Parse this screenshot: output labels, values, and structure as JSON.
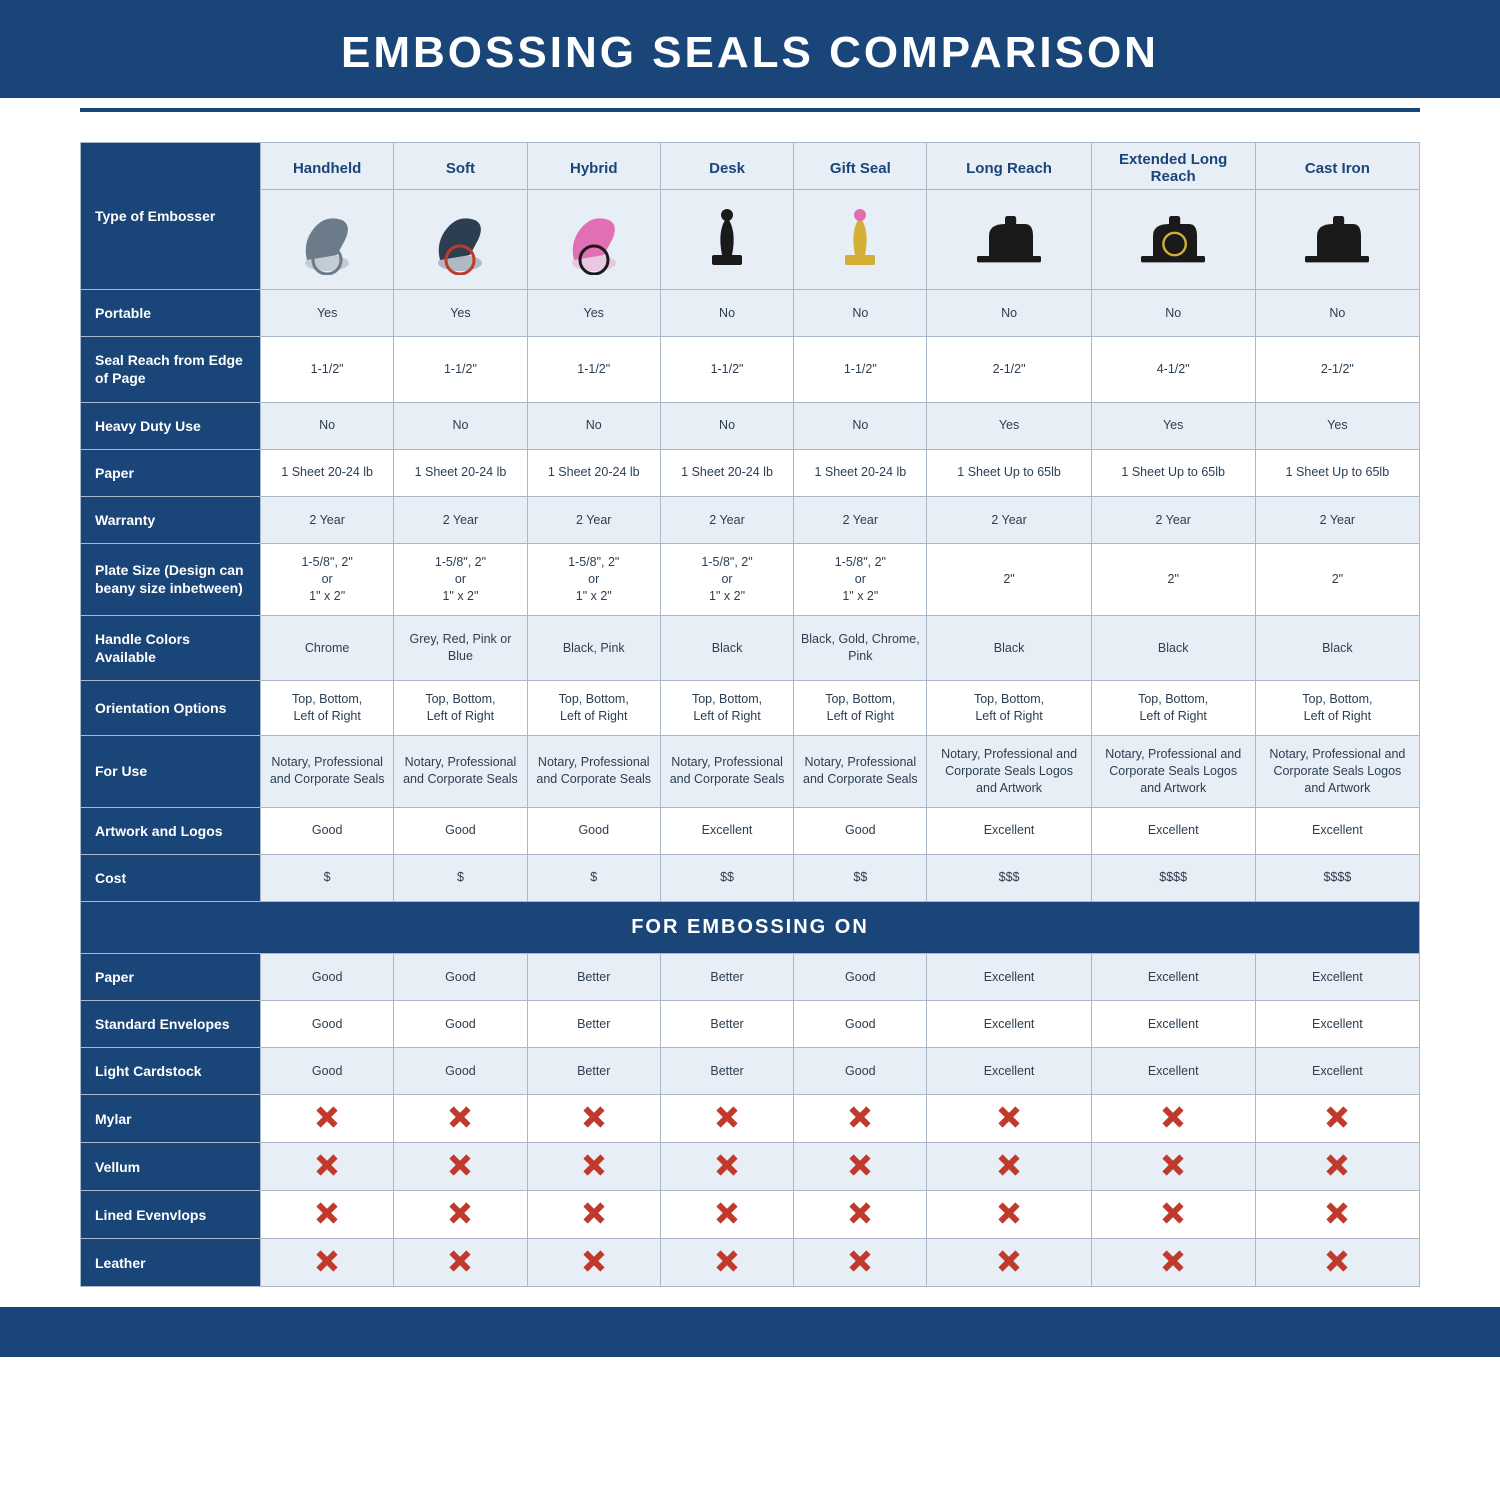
{
  "title": "EMBOSSING SEALS COMPARISON",
  "colors": {
    "brand": "#1a4578",
    "header_bg": "#e8eef5",
    "row_alt_bg": "#e8eef5",
    "border": "#a8b8c8",
    "x_color": "#c0392b",
    "text": "#2c3e50"
  },
  "columns": [
    "Handheld",
    "Soft",
    "Hybrid",
    "Desk",
    "Gift Seal",
    "Long Reach",
    "Extended Long Reach",
    "Cast Iron"
  ],
  "type_label": "Type of Embosser",
  "section2_label": "FOR EMBOSSING ON",
  "embosser_icons": {
    "Handheld": {
      "body": "#6c7b8a",
      "accent": "#6c7b8a",
      "variant": "hand"
    },
    "Soft": {
      "body": "#2c3e50",
      "accent": "#c0392b",
      "variant": "soft"
    },
    "Hybrid": {
      "body": "#e26fb3",
      "accent": "#1a1a1a",
      "variant": "hybrid"
    },
    "Desk": {
      "body": "#1a1a1a",
      "accent": "#1a1a1a",
      "variant": "desk"
    },
    "Gift Seal": {
      "body": "#d4af37",
      "accent": "#e26fb3",
      "variant": "gift"
    },
    "Long Reach": {
      "body": "#1a1a1a",
      "accent": "#1a1a1a",
      "variant": "long"
    },
    "Extended Long Reach": {
      "body": "#1a1a1a",
      "accent": "#d4af37",
      "variant": "ext"
    },
    "Cast Iron": {
      "body": "#1a1a1a",
      "accent": "#1a1a1a",
      "variant": "cast"
    }
  },
  "rows": [
    {
      "label": "Portable",
      "alt": true,
      "cells": [
        "Yes",
        "Yes",
        "Yes",
        "No",
        "No",
        "No",
        "No",
        "No"
      ]
    },
    {
      "label": "Seal Reach from Edge of Page",
      "alt": false,
      "cells": [
        "1-1/2\"",
        "1-1/2\"",
        "1-1/2\"",
        "1-1/2\"",
        "1-1/2\"",
        "2-1/2\"",
        "4-1/2\"",
        "2-1/2\""
      ]
    },
    {
      "label": "Heavy Duty Use",
      "alt": true,
      "cells": [
        "No",
        "No",
        "No",
        "No",
        "No",
        "Yes",
        "Yes",
        "Yes"
      ]
    },
    {
      "label": "Paper",
      "alt": false,
      "cells": [
        "1 Sheet 20-24 lb",
        "1 Sheet 20-24 lb",
        "1 Sheet 20-24 lb",
        "1 Sheet 20-24 lb",
        "1 Sheet 20-24 lb",
        "1 Sheet Up to 65lb",
        "1 Sheet Up to 65lb",
        "1 Sheet Up to 65lb"
      ]
    },
    {
      "label": "Warranty",
      "alt": true,
      "cells": [
        "2 Year",
        "2 Year",
        "2 Year",
        "2 Year",
        "2 Year",
        "2 Year",
        "2 Year",
        "2 Year"
      ]
    },
    {
      "label": "Plate Size (Design can beany size inbetween)",
      "alt": false,
      "cells": [
        "1-5/8\", 2\"\nor\n1\" x 2\"",
        "1-5/8\", 2\"\nor\n1\" x 2\"",
        "1-5/8\", 2\"\nor\n1\" x 2\"",
        "1-5/8\", 2\"\nor\n1\" x 2\"",
        "1-5/8\", 2\"\nor\n1\" x 2\"",
        "2\"",
        "2\"",
        "2\""
      ]
    },
    {
      "label": "Handle Colors Available",
      "alt": true,
      "cells": [
        "Chrome",
        "Grey, Red, Pink or Blue",
        "Black, Pink",
        "Black",
        "Black, Gold, Chrome, Pink",
        "Black",
        "Black",
        "Black"
      ]
    },
    {
      "label": "Orientation Options",
      "alt": false,
      "cells": [
        "Top, Bottom,\nLeft of Right",
        "Top, Bottom,\nLeft of Right",
        "Top, Bottom,\nLeft of Right",
        "Top, Bottom,\nLeft of Right",
        "Top, Bottom,\nLeft of Right",
        "Top, Bottom,\nLeft of Right",
        "Top, Bottom,\nLeft of Right",
        "Top, Bottom,\nLeft of Right"
      ]
    },
    {
      "label": "For Use",
      "alt": true,
      "cells": [
        "Notary, Professional and Corporate Seals",
        "Notary, Professional and Corporate Seals",
        "Notary, Professional and Corporate Seals",
        "Notary, Professional and Corporate Seals",
        "Notary, Professional and Corporate Seals",
        "Notary, Professional and Corporate Seals Logos and Artwork",
        "Notary, Professional and Corporate Seals Logos and Artwork",
        "Notary, Professional and Corporate Seals Logos and Artwork"
      ]
    },
    {
      "label": "Artwork and Logos",
      "alt": false,
      "cells": [
        "Good",
        "Good",
        "Good",
        "Excellent",
        "Good",
        "Excellent",
        "Excellent",
        "Excellent"
      ]
    },
    {
      "label": "Cost",
      "alt": true,
      "cells": [
        "$",
        "$",
        "$",
        "$$",
        "$$",
        "$$$",
        "$$$$",
        "$$$$"
      ]
    }
  ],
  "rows2": [
    {
      "label": "Paper",
      "alt": true,
      "cells": [
        "Good",
        "Good",
        "Better",
        "Better",
        "Good",
        "Excellent",
        "Excellent",
        "Excellent"
      ]
    },
    {
      "label": "Standard Envelopes",
      "alt": false,
      "cells": [
        "Good",
        "Good",
        "Better",
        "Better",
        "Good",
        "Excellent",
        "Excellent",
        "Excellent"
      ]
    },
    {
      "label": "Light Cardstock",
      "alt": true,
      "cells": [
        "Good",
        "Good",
        "Better",
        "Better",
        "Good",
        "Excellent",
        "Excellent",
        "Excellent"
      ]
    },
    {
      "label": "Mylar",
      "alt": false,
      "x": true
    },
    {
      "label": "Vellum",
      "alt": true,
      "x": true
    },
    {
      "label": "Lined Evenvlops",
      "alt": false,
      "x": true
    },
    {
      "label": "Leather",
      "alt": true,
      "x": true
    }
  ]
}
